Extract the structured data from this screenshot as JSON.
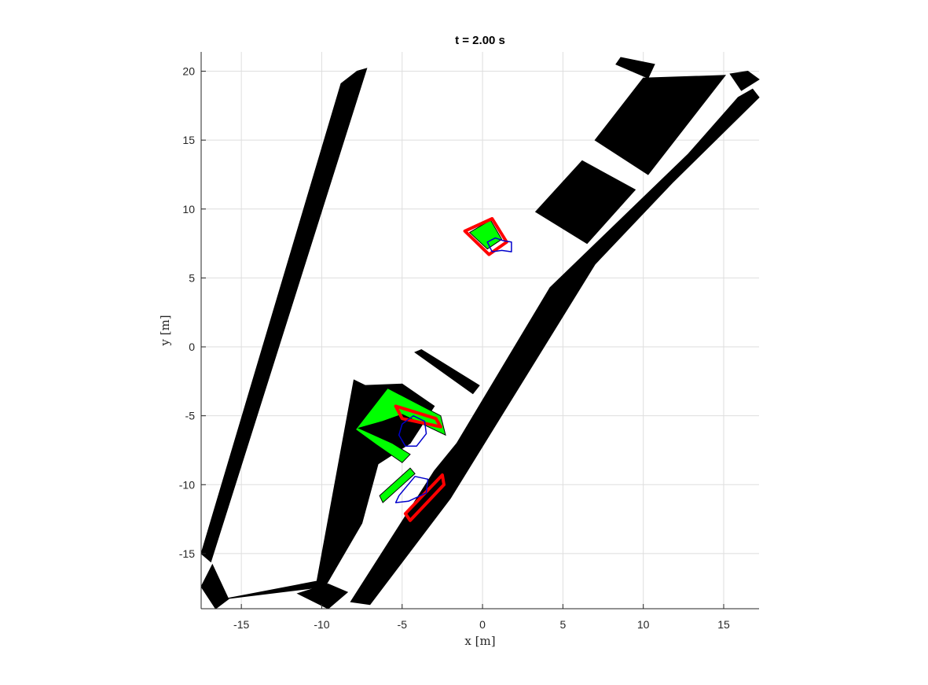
{
  "chart_data": {
    "type": "scatter",
    "title": "t = 2.00 s",
    "xlabel": "x [m]",
    "ylabel": "y [m]",
    "xlim": [
      -17.5,
      17.2
    ],
    "ylim": [
      -19.0,
      21.4
    ],
    "xticks": [
      -15,
      -10,
      -5,
      0,
      5,
      10,
      15
    ],
    "yticks": [
      -15,
      -10,
      -5,
      0,
      5,
      10,
      15,
      20
    ],
    "grid": true,
    "colors": {
      "obstacle": "#000000",
      "vehicle": "#00ff00",
      "safety_set": "#ff0000",
      "prediction": "#0000cc",
      "grid": "#dedede",
      "axis": "#262626"
    },
    "obstacles": [
      [
        [
          -17.5,
          -15.0
        ],
        [
          -8.8,
          19.1
        ],
        [
          -7.8,
          20.0
        ],
        [
          -7.2,
          20.2
        ],
        [
          -16.9,
          -15.6
        ]
      ],
      [
        [
          -17.5,
          -17.4
        ],
        [
          -16.8,
          -15.8
        ],
        [
          -15.8,
          -18.3
        ],
        [
          -16.6,
          -19.0
        ]
      ],
      [
        [
          -16.1,
          -18.3
        ],
        [
          -10.3,
          -17.0
        ],
        [
          -8.0,
          -2.4
        ],
        [
          -7.3,
          -2.8
        ],
        [
          -5.0,
          -2.7
        ],
        [
          -3.0,
          -4.3
        ],
        [
          -4.5,
          -7.0
        ],
        [
          -6.5,
          -8.5
        ],
        [
          -7.5,
          -12.8
        ],
        [
          -9.8,
          -17.4
        ]
      ],
      [
        [
          -11.5,
          -17.9
        ],
        [
          -9.6,
          -19.0
        ],
        [
          -8.4,
          -17.8
        ],
        [
          -9.6,
          -17.2
        ]
      ],
      [
        [
          -8.2,
          -18.5
        ],
        [
          -7.0,
          -18.7
        ],
        [
          -2.0,
          -11.0
        ],
        [
          7.0,
          6.0
        ],
        [
          11.8,
          11.9
        ],
        [
          17.2,
          18.1
        ],
        [
          16.8,
          18.7
        ],
        [
          15.9,
          18.1
        ],
        [
          12.8,
          14.0
        ],
        [
          4.2,
          4.3
        ],
        [
          -1.6,
          -7.0
        ],
        [
          -3.0,
          -9.0
        ]
      ],
      [
        [
          -4.2,
          -0.4
        ],
        [
          -3.8,
          -0.2
        ],
        [
          -0.2,
          -2.8
        ],
        [
          -0.6,
          -3.4
        ]
      ],
      [
        [
          3.3,
          9.8
        ],
        [
          6.2,
          13.5
        ],
        [
          9.5,
          11.4
        ],
        [
          6.5,
          7.5
        ]
      ],
      [
        [
          7.0,
          15.0
        ],
        [
          10.0,
          19.5
        ],
        [
          15.1,
          19.7
        ],
        [
          10.3,
          12.5
        ]
      ],
      [
        [
          15.4,
          19.8
        ],
        [
          16.5,
          20.0
        ],
        [
          17.2,
          19.4
        ],
        [
          16.1,
          18.6
        ]
      ],
      [
        [
          8.3,
          20.5
        ],
        [
          8.6,
          21.0
        ],
        [
          10.7,
          20.5
        ],
        [
          10.3,
          19.5
        ]
      ]
    ],
    "vehicles": [
      {
        "body": [
          [
            -5.9,
            -3.0
          ],
          [
            -2.6,
            -5.0
          ],
          [
            -2.3,
            -6.4
          ],
          [
            -5.0,
            -4.9
          ],
          [
            -6.2,
            -5.4
          ],
          [
            -7.7,
            -5.9
          ],
          [
            -5.6,
            -7.0
          ],
          [
            -4.5,
            -7.8
          ],
          [
            -5.0,
            -8.4
          ],
          [
            -6.6,
            -7.1
          ],
          [
            -7.9,
            -6.0
          ]
        ],
        "safety": [
          [
            -5.4,
            -4.3
          ],
          [
            -2.9,
            -5.2
          ],
          [
            -2.6,
            -5.8
          ],
          [
            -5.0,
            -5.2
          ]
        ],
        "prediction": [
          [
            -5.0,
            -5.6
          ],
          [
            -4.3,
            -5.0
          ],
          [
            -3.6,
            -5.4
          ],
          [
            -3.5,
            -6.3
          ],
          [
            -4.1,
            -7.2
          ],
          [
            -4.8,
            -7.2
          ],
          [
            -5.2,
            -6.4
          ]
        ]
      },
      {
        "body": [
          [
            -6.4,
            -10.8
          ],
          [
            -4.5,
            -8.8
          ],
          [
            -4.2,
            -9.2
          ],
          [
            -6.2,
            -11.3
          ]
        ],
        "safety": [
          [
            -4.8,
            -12.1
          ],
          [
            -2.5,
            -9.3
          ],
          [
            -2.4,
            -10.0
          ],
          [
            -4.5,
            -12.6
          ]
        ],
        "prediction": [
          [
            -5.2,
            -10.8
          ],
          [
            -4.2,
            -9.4
          ],
          [
            -3.4,
            -9.6
          ],
          [
            -3.5,
            -10.6
          ],
          [
            -4.6,
            -11.2
          ],
          [
            -5.4,
            -11.3
          ]
        ]
      },
      {
        "body": [
          [
            -0.8,
            8.3
          ],
          [
            0.5,
            9.2
          ],
          [
            1.2,
            7.8
          ],
          [
            0.3,
            7.1
          ]
        ],
        "safety": [
          [
            -1.1,
            8.4
          ],
          [
            0.6,
            9.3
          ],
          [
            1.5,
            7.6
          ],
          [
            0.4,
            6.7
          ]
        ],
        "prediction": [
          [
            0.3,
            7.6
          ],
          [
            0.8,
            7.9
          ],
          [
            1.3,
            7.7
          ],
          [
            1.8,
            7.6
          ],
          [
            1.8,
            6.9
          ],
          [
            1.2,
            7.0
          ],
          [
            0.6,
            6.9
          ]
        ]
      }
    ]
  }
}
